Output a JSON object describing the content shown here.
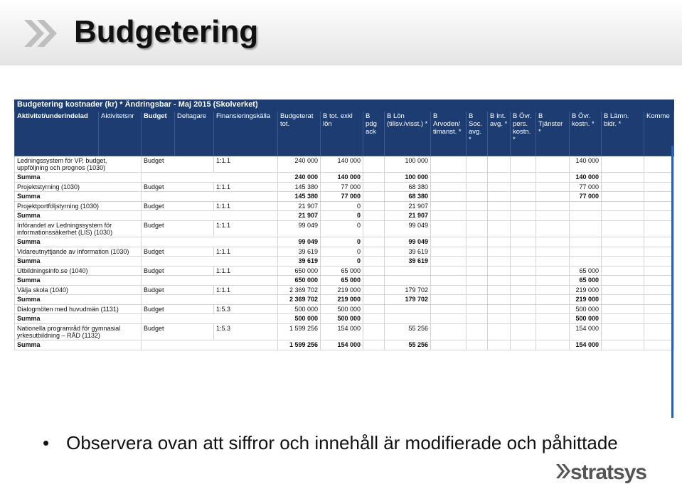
{
  "header": {
    "title": "Budgetering"
  },
  "table": {
    "caption": "Budgetering kostnader (kr) * Ändringsbar - Maj 2015 (Skolverket)",
    "columns": [
      "Aktivitet/underindelad",
      "Aktivitetsnr",
      "Budget",
      "Deltagare",
      "Finansieringskälla",
      "Budgeterat tot.",
      "B tot. exkl lön",
      "B pdg ack",
      "B Lön (tillsv./visst.) *",
      "B Arvoden/ timanst. *",
      "B Soc. avg. *",
      "B Int. avg. *",
      "B Övr. pers. kostn. *",
      "B Tjänster *",
      "B Övr. kostn. *",
      "B Lämn. bidr. *",
      "Komme"
    ],
    "rows": [
      {
        "activity": "Ledningssystem för VP, budget, uppföljning och prognos (1030)",
        "budget": "Budget",
        "source": "1:1.1",
        "total": "240 000",
        "excl_salary": "140 000",
        "salary": "100 000",
        "other_costs": "140 000",
        "sum": {
          "label": "Summa",
          "total": "240 000",
          "excl_salary": "140 000",
          "salary": "100 000",
          "other_costs": "140 000"
        }
      },
      {
        "activity": "Projektstyrning (1030)",
        "budget": "Budget",
        "source": "1:1.1",
        "total": "145 380",
        "excl_salary": "77 000",
        "salary": "68 380",
        "other_costs": "77 000",
        "sum": {
          "label": "Summa",
          "total": "145 380",
          "excl_salary": "77 000",
          "salary": "68 380",
          "other_costs": "77 000"
        }
      },
      {
        "activity": "Projektportföljstyrning (1030)",
        "budget": "Budget",
        "source": "1:1.1",
        "total": "21 907",
        "excl_salary": "0",
        "salary": "21 907",
        "sum": {
          "label": "Summa",
          "total": "21 907",
          "excl_salary": "0",
          "salary": "21 907"
        }
      },
      {
        "activity": "Införandet av Ledningssystem för informationssäkerhet (LIS) (1030)",
        "budget": "Budget",
        "source": "1:1.1",
        "total": "99 049",
        "excl_salary": "0",
        "salary": "99 049",
        "sum": {
          "label": "Summa",
          "total": "99 049",
          "excl_salary": "0",
          "salary": "99 049"
        }
      },
      {
        "activity": "Vidareutnyttjande av information (1030)",
        "budget": "Budget",
        "source": "1:1.1",
        "total": "39 619",
        "excl_salary": "0",
        "salary": "39 619",
        "sum": {
          "label": "Summa",
          "total": "39 619",
          "excl_salary": "0",
          "salary": "39 619"
        }
      },
      {
        "activity": "Utbildningsinfo.se (1040)",
        "budget": "Budget",
        "source": "1:1.1",
        "total": "650 000",
        "excl_salary": "65 000",
        "other_costs": "65 000",
        "sum": {
          "label": "Summa",
          "total": "650 000",
          "excl_salary": "65 000",
          "other_costs": "65 000"
        }
      },
      {
        "activity": "Välja skola (1040)",
        "budget": "Budget",
        "source": "1:1.1",
        "total": "2 369 702",
        "excl_salary": "219 000",
        "salary": "179 702",
        "other_costs": "219 000",
        "sum": {
          "label": "Summa",
          "total": "2 369 702",
          "excl_salary": "219 000",
          "salary": "179 702",
          "other_costs": "219 000"
        }
      },
      {
        "activity": "Dialogmöten med huvudmän (1131)",
        "budget": "Budget",
        "source": "1:5.3",
        "total": "500 000",
        "excl_salary": "500 000",
        "other_costs": "500 000",
        "sum": {
          "label": "Summa",
          "total": "500 000",
          "excl_salary": "500 000",
          "other_costs": "500 000"
        }
      },
      {
        "activity": "Nationella programråd för gymnasial yrkesutbildning – RÅD (1132)",
        "budget": "Budget",
        "source": "1:5.3",
        "total": "1 599 256",
        "excl_salary": "154 000",
        "salary": "55 256",
        "other_costs": "154 000",
        "sum": {
          "label": "Summa",
          "total": "1 599 256",
          "excl_salary": "154 000",
          "salary": "55 256",
          "other_costs": "154 000"
        }
      }
    ]
  },
  "note": "Observera ovan att siffror och innehåll är modifierade och påhittade",
  "logo": "stratsys"
}
